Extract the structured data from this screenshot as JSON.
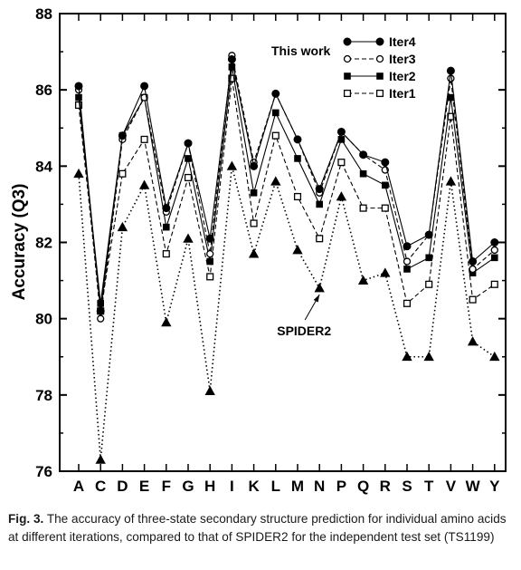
{
  "chart_data": {
    "type": "line",
    "title": "",
    "xlabel": "",
    "ylabel": "Accuracy (Q3)",
    "ylim": [
      76,
      88
    ],
    "yticks": [
      "76",
      "78",
      "80",
      "82",
      "84",
      "86",
      "88"
    ],
    "grid": false,
    "legend_position": "top-right",
    "legend_header": "This work",
    "categories": [
      "A",
      "C",
      "D",
      "E",
      "F",
      "G",
      "H",
      "I",
      "K",
      "L",
      "M",
      "N",
      "P",
      "Q",
      "R",
      "S",
      "T",
      "V",
      "W",
      "Y"
    ],
    "series": [
      {
        "name": "Iter4",
        "marker": "filled-circle",
        "line": "solid",
        "values": [
          86.1,
          80.2,
          84.8,
          86.1,
          82.9,
          84.6,
          82.1,
          86.8,
          84.0,
          85.9,
          84.7,
          83.4,
          84.9,
          84.3,
          84.1,
          81.9,
          82.2,
          86.5,
          81.5,
          82.0
        ]
      },
      {
        "name": "Iter3",
        "marker": "open-circle",
        "line": "dashed",
        "values": [
          86.0,
          80.0,
          84.7,
          85.8,
          82.8,
          84.6,
          81.7,
          86.9,
          84.1,
          85.9,
          84.7,
          83.3,
          84.9,
          84.3,
          83.9,
          81.5,
          82.2,
          86.3,
          81.3,
          81.8
        ]
      },
      {
        "name": "Iter2",
        "marker": "filled-square",
        "line": "solid",
        "values": [
          85.8,
          80.4,
          84.8,
          85.8,
          82.4,
          84.2,
          81.5,
          86.6,
          83.3,
          85.4,
          84.2,
          83.0,
          84.7,
          83.8,
          83.5,
          81.3,
          81.6,
          85.8,
          81.2,
          81.6
        ]
      },
      {
        "name": "Iter1",
        "marker": "open-square",
        "line": "dashed",
        "values": [
          85.6,
          80.2,
          83.8,
          84.7,
          81.7,
          83.7,
          81.1,
          86.3,
          82.5,
          84.8,
          83.2,
          82.1,
          84.1,
          82.9,
          82.9,
          80.4,
          80.9,
          85.3,
          80.5,
          80.9
        ]
      },
      {
        "name": "SPIDER2",
        "marker": "filled-triangle",
        "line": "dotted",
        "values": [
          83.8,
          76.3,
          82.4,
          83.5,
          79.9,
          82.1,
          78.1,
          84.0,
          81.7,
          83.6,
          81.8,
          80.8,
          83.2,
          81.0,
          81.2,
          79.0,
          79.0,
          83.6,
          79.4,
          79.0
        ]
      }
    ],
    "annotations": [
      {
        "text": "SPIDER2",
        "points_to": {
          "category": "N",
          "value": 80.8
        }
      }
    ]
  },
  "caption": {
    "label": "Fig. 3.",
    "text": "The accuracy of three-state secondary structure prediction for individual amino acids at different iterations, compared to that of SPIDER2 for the independent test set (TS1199)"
  }
}
